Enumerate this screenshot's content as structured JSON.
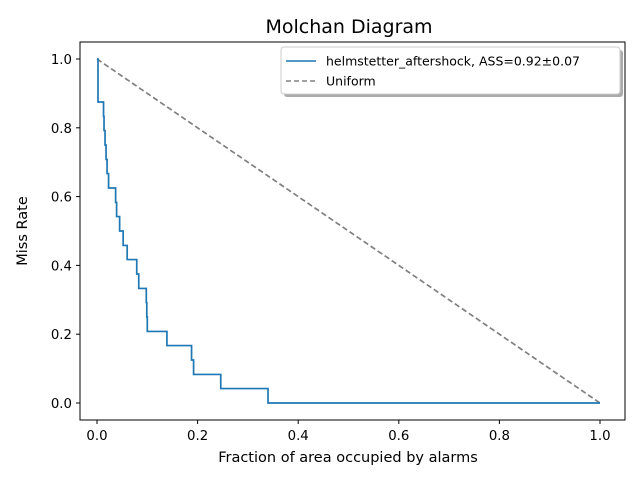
{
  "chart_data": {
    "type": "line",
    "title": "Molchan Diagram",
    "xlabel": "Fraction of area occupied by alarms",
    "ylabel": "Miss Rate",
    "xlim": [
      -0.05,
      1.05
    ],
    "ylim": [
      -0.05,
      1.05
    ],
    "xticks": [
      0.0,
      0.2,
      0.4,
      0.6,
      0.8,
      1.0
    ],
    "xtick_labels": [
      "0.0",
      "0.2",
      "0.4",
      "0.6",
      "0.8",
      "1.0"
    ],
    "yticks": [
      0.0,
      0.2,
      0.4,
      0.6,
      0.8,
      1.0
    ],
    "ytick_labels": [
      "0.0",
      "0.2",
      "0.4",
      "0.6",
      "0.8",
      "1.0"
    ],
    "grid": false,
    "legend_position": "upper right",
    "series": [
      {
        "name": "helmstetter_aftershock, ASS=0.92±0.07",
        "color": "#1f77b4",
        "style": "solid",
        "step": true,
        "x": [
          0.0,
          0.002,
          0.002,
          0.002,
          0.013,
          0.013,
          0.014,
          0.014,
          0.016,
          0.016,
          0.018,
          0.018,
          0.02,
          0.02,
          0.023,
          0.023,
          0.037,
          0.037,
          0.039,
          0.039,
          0.045,
          0.045,
          0.052,
          0.052,
          0.06,
          0.06,
          0.079,
          0.079,
          0.083,
          0.083,
          0.098,
          0.098,
          0.099,
          0.099,
          0.1,
          0.1,
          0.139,
          0.139,
          0.188,
          0.188,
          0.192,
          0.192,
          0.246,
          0.246,
          0.34,
          0.34,
          1.0
        ],
        "y": [
          1.0,
          1.0,
          0.917,
          0.875,
          0.875,
          0.833,
          0.833,
          0.792,
          0.792,
          0.75,
          0.75,
          0.708,
          0.708,
          0.667,
          0.667,
          0.625,
          0.625,
          0.583,
          0.583,
          0.542,
          0.542,
          0.5,
          0.5,
          0.458,
          0.458,
          0.417,
          0.417,
          0.375,
          0.375,
          0.333,
          0.333,
          0.292,
          0.292,
          0.25,
          0.25,
          0.208,
          0.208,
          0.167,
          0.167,
          0.125,
          0.125,
          0.083,
          0.083,
          0.042,
          0.042,
          0.0,
          0.0
        ]
      },
      {
        "name": "Uniform",
        "color": "#808080",
        "style": "dashed",
        "x": [
          0.0,
          1.0
        ],
        "y": [
          1.0,
          0.0
        ]
      }
    ]
  },
  "legend": {
    "items": [
      {
        "label": "helmstetter_aftershock, ASS=0.92±0.07",
        "color": "#1f77b4",
        "style": "solid"
      },
      {
        "label": "Uniform",
        "color": "#808080",
        "style": "dashed"
      }
    ]
  }
}
